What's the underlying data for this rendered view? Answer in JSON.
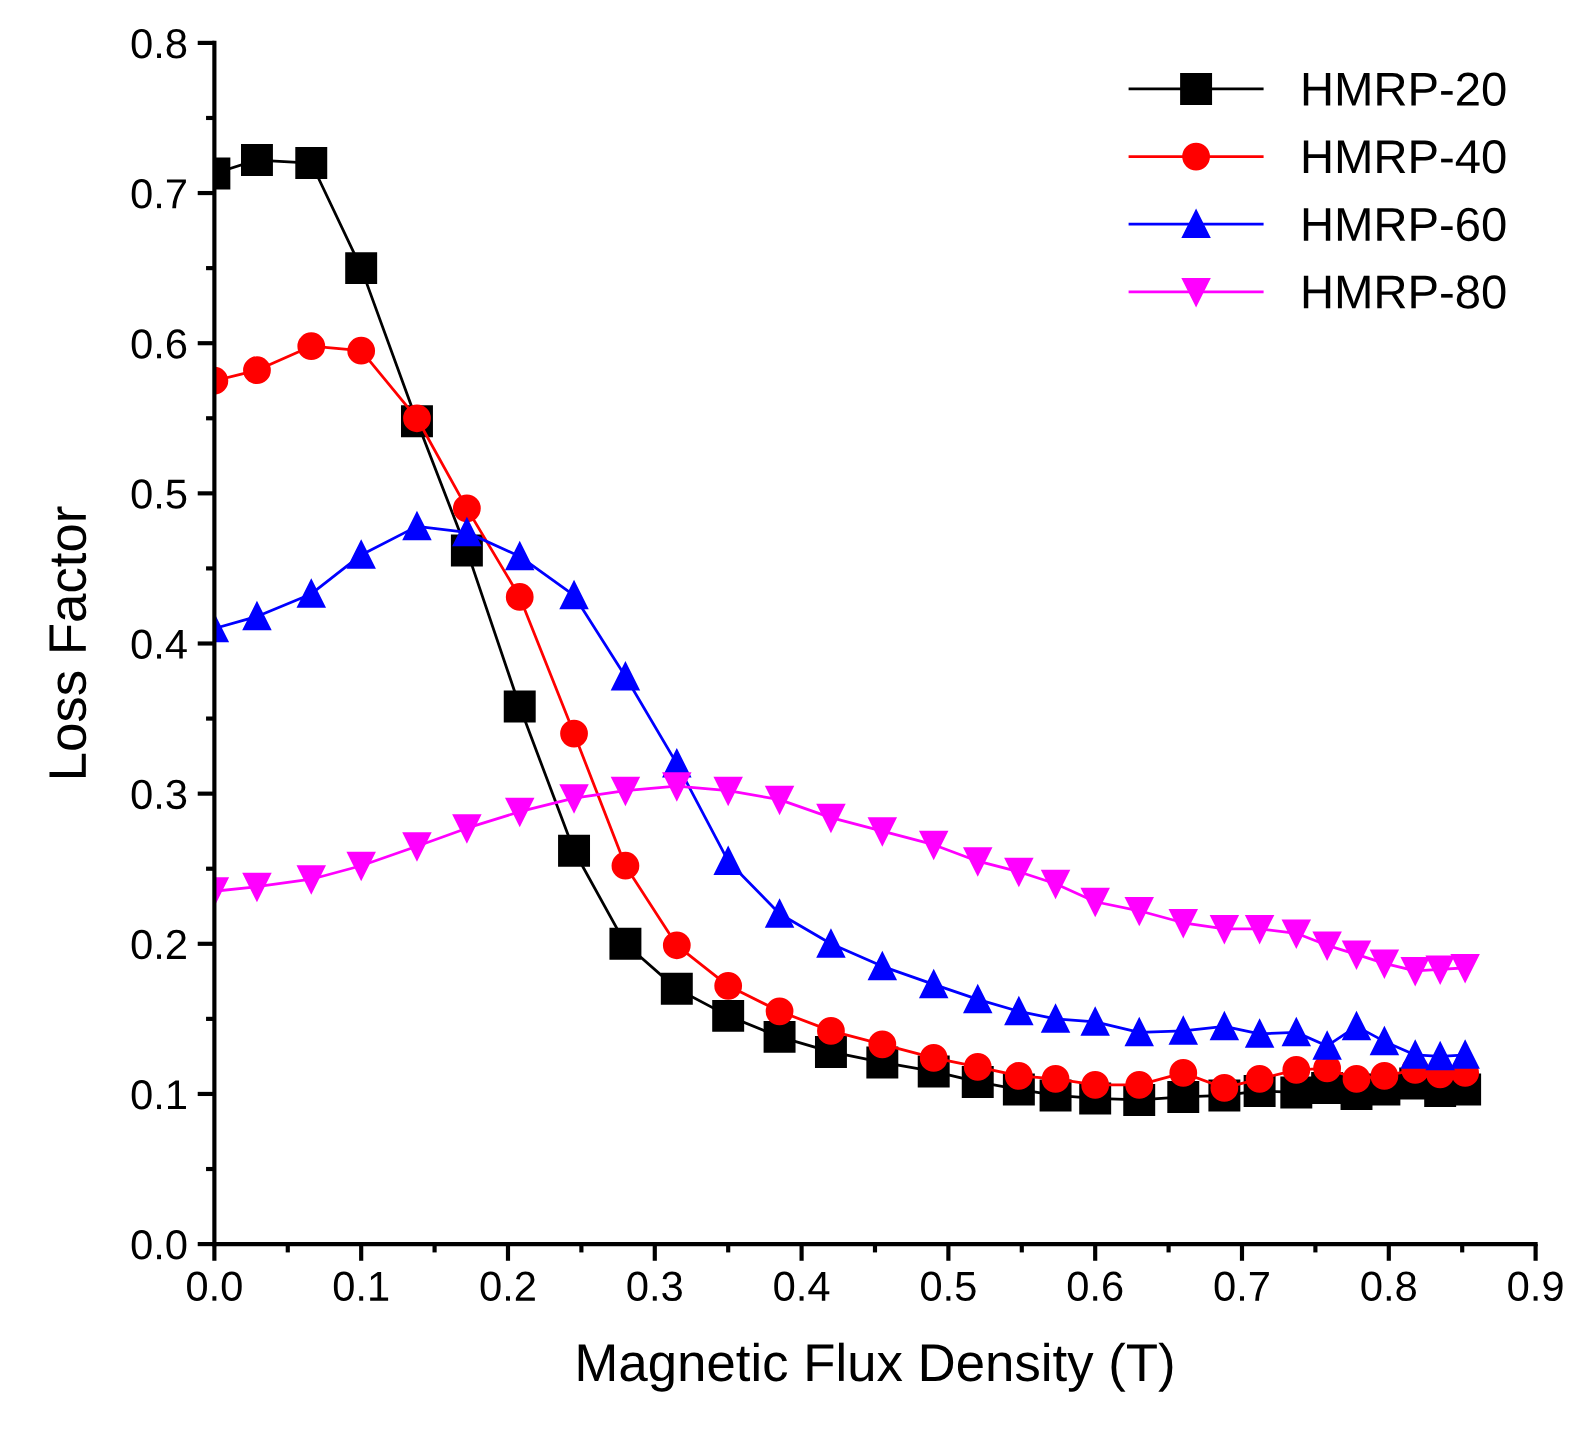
{
  "chart_data": {
    "type": "line",
    "xlabel": "Magnetic Flux Density (T)",
    "ylabel": "Loss Factor",
    "x": [
      0,
      0.029,
      0.066,
      0.1,
      0.138,
      0.172,
      0.208,
      0.245,
      0.28,
      0.315,
      0.35,
      0.385,
      0.42,
      0.455,
      0.49,
      0.52,
      0.548,
      0.573,
      0.6,
      0.63,
      0.66,
      0.688,
      0.712,
      0.737,
      0.758,
      0.778,
      0.797,
      0.818,
      0.835,
      0.852
    ],
    "series": [
      {
        "name": "HMRP-20",
        "color": "#000000",
        "marker": "square",
        "values": [
          0.713,
          0.722,
          0.72,
          0.65,
          0.548,
          0.462,
          0.358,
          0.262,
          0.2,
          0.17,
          0.152,
          0.138,
          0.128,
          0.121,
          0.115,
          0.108,
          0.103,
          0.099,
          0.097,
          0.096,
          0.098,
          0.099,
          0.102,
          0.101,
          0.104,
          0.1,
          0.103,
          0.107,
          0.102,
          0.103
        ]
      },
      {
        "name": "HMRP-40",
        "color": "#ff0000",
        "marker": "circle",
        "values": [
          0.575,
          0.582,
          0.598,
          0.595,
          0.55,
          0.49,
          0.431,
          0.34,
          0.252,
          0.199,
          0.172,
          0.155,
          0.142,
          0.133,
          0.124,
          0.118,
          0.112,
          0.11,
          0.106,
          0.106,
          0.114,
          0.104,
          0.11,
          0.116,
          0.117,
          0.11,
          0.112,
          0.116,
          0.113,
          0.114
        ]
      },
      {
        "name": "HMRP-60",
        "color": "#0000ff",
        "marker": "triangle",
        "values": [
          0.41,
          0.418,
          0.433,
          0.459,
          0.478,
          0.474,
          0.458,
          0.432,
          0.378,
          0.32,
          0.255,
          0.22,
          0.2,
          0.185,
          0.173,
          0.163,
          0.155,
          0.15,
          0.148,
          0.141,
          0.142,
          0.145,
          0.14,
          0.141,
          0.132,
          0.145,
          0.135,
          0.126,
          0.125,
          0.126
        ]
      },
      {
        "name": "HMRP-80",
        "color": "#ff00ff",
        "marker": "triangle_down",
        "values": [
          0.235,
          0.238,
          0.243,
          0.252,
          0.265,
          0.277,
          0.288,
          0.297,
          0.302,
          0.305,
          0.302,
          0.296,
          0.284,
          0.275,
          0.266,
          0.255,
          0.248,
          0.24,
          0.228,
          0.222,
          0.214,
          0.21,
          0.21,
          0.207,
          0.199,
          0.193,
          0.187,
          0.182,
          0.183,
          0.184
        ]
      }
    ],
    "xlim": [
      0,
      0.9
    ],
    "xticks": [
      {
        "value": 0,
        "label": "0.0"
      },
      0.1,
      0.2,
      0.3,
      0.4,
      0.5,
      0.6,
      0.7,
      0.8,
      0.9
    ],
    "ylim": [
      0,
      0.8
    ],
    "yticks": [
      {
        "value": 0,
        "label": "0.0"
      },
      0.1,
      0.2,
      0.3,
      0.4,
      0.5,
      0.6,
      0.7,
      0.8
    ],
    "legend": "top right",
    "grid": false
  }
}
